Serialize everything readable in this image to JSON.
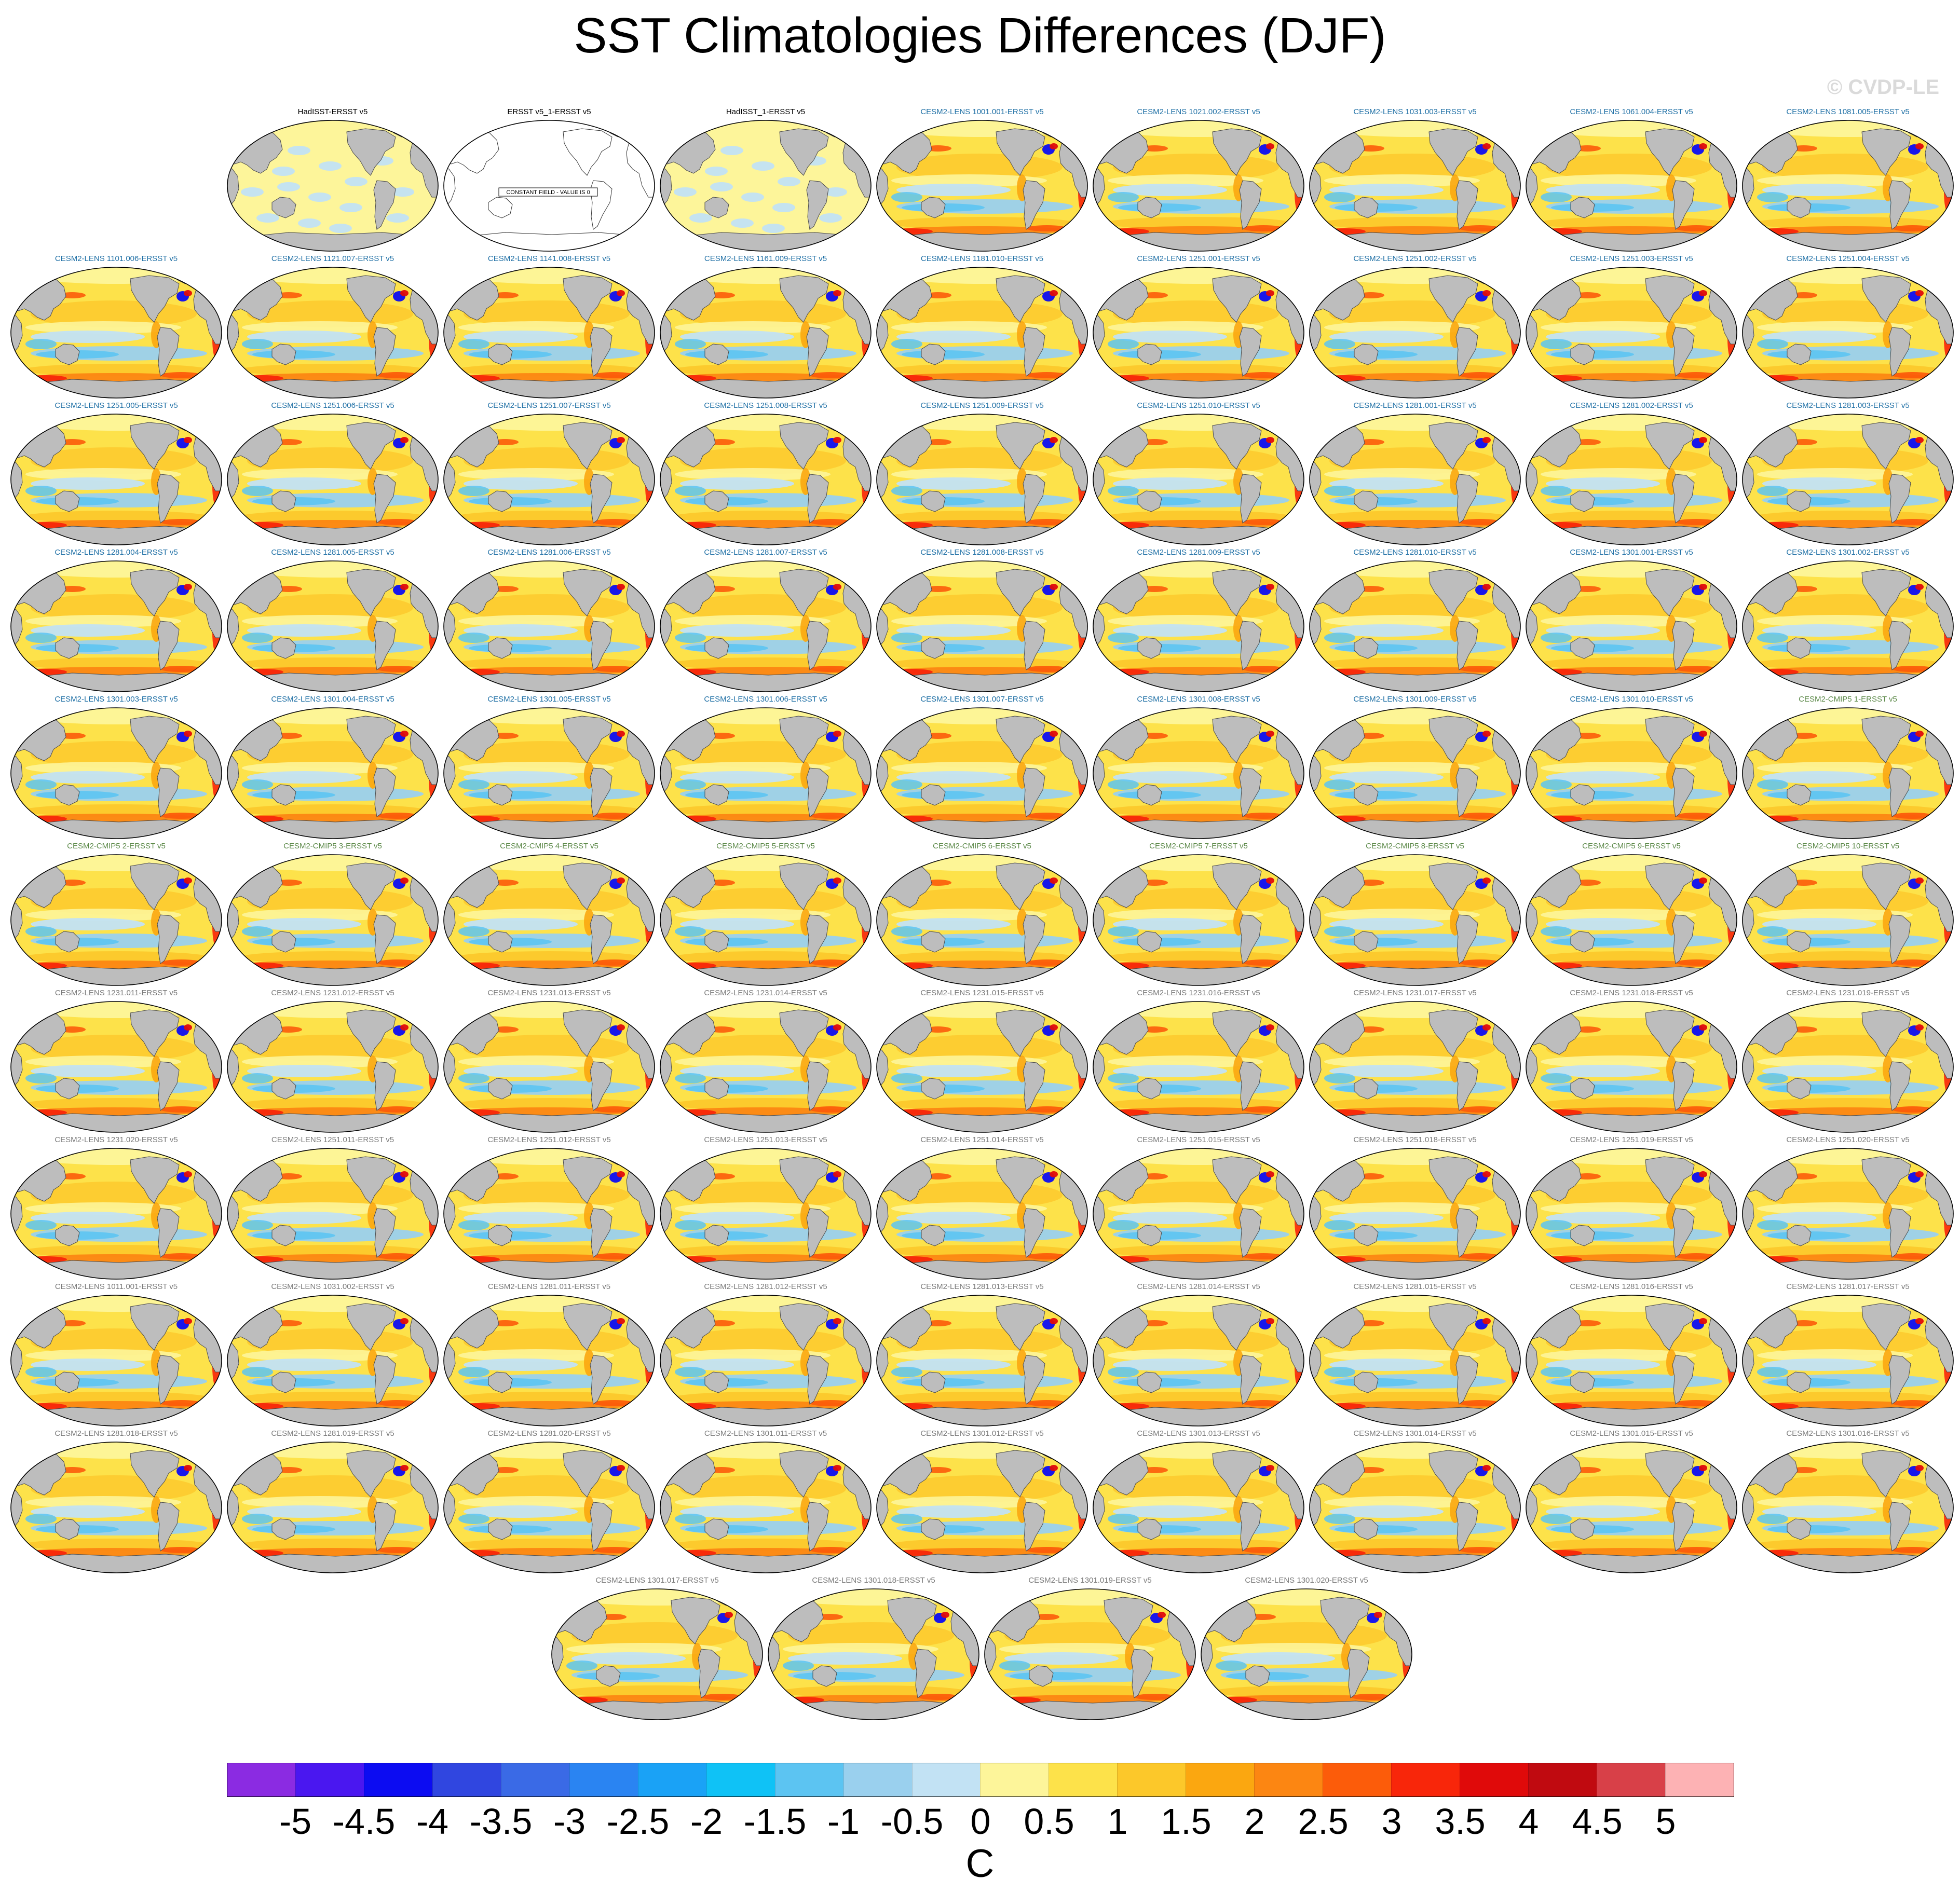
{
  "figure": {
    "title": "SST Climatologies Differences (DJF)",
    "watermark": "© CVDP-LE"
  },
  "chart_data": {
    "type": "map-panels",
    "panels": [
      {
        "label": "HadISST-ERSST v5",
        "group": "obs",
        "pattern": "obs"
      },
      {
        "label": "ERSST v5_1-ERSST v5",
        "group": "obs",
        "pattern": "constant",
        "note": "CONSTANT FIELD - VALUE IS 0"
      },
      {
        "label": "HadISST_1-ERSST v5",
        "group": "obs",
        "pattern": "obs"
      },
      {
        "label": "CESM2-LENS 1001.001-ERSST v5",
        "group": "lens-blue",
        "pattern": "model"
      },
      {
        "label": "CESM2-LENS 1021.002-ERSST v5",
        "group": "lens-blue",
        "pattern": "model"
      },
      {
        "label": "CESM2-LENS 1031.003-ERSST v5",
        "group": "lens-blue",
        "pattern": "model"
      },
      {
        "label": "CESM2-LENS 1061.004-ERSST v5",
        "group": "lens-blue",
        "pattern": "model"
      },
      {
        "label": "CESM2-LENS 1081.005-ERSST v5",
        "group": "lens-blue",
        "pattern": "model"
      },
      {
        "label": "CESM2-LENS 1101.006-ERSST v5",
        "group": "lens-blue",
        "pattern": "model"
      },
      {
        "label": "CESM2-LENS 1121.007-ERSST v5",
        "group": "lens-blue",
        "pattern": "model"
      },
      {
        "label": "CESM2-LENS 1141.008-ERSST v5",
        "group": "lens-blue",
        "pattern": "model"
      },
      {
        "label": "CESM2-LENS 1161.009-ERSST v5",
        "group": "lens-blue",
        "pattern": "model"
      },
      {
        "label": "CESM2-LENS 1181.010-ERSST v5",
        "group": "lens-blue",
        "pattern": "model"
      },
      {
        "label": "CESM2-LENS 1251.001-ERSST v5",
        "group": "lens-blue",
        "pattern": "model"
      },
      {
        "label": "CESM2-LENS 1251.002-ERSST v5",
        "group": "lens-blue",
        "pattern": "model"
      },
      {
        "label": "CESM2-LENS 1251.003-ERSST v5",
        "group": "lens-blue",
        "pattern": "model"
      },
      {
        "label": "CESM2-LENS 1251.004-ERSST v5",
        "group": "lens-blue",
        "pattern": "model"
      },
      {
        "label": "CESM2-LENS 1251.005-ERSST v5",
        "group": "lens-blue",
        "pattern": "model"
      },
      {
        "label": "CESM2-LENS 1251.006-ERSST v5",
        "group": "lens-blue",
        "pattern": "model"
      },
      {
        "label": "CESM2-LENS 1251.007-ERSST v5",
        "group": "lens-blue",
        "pattern": "model"
      },
      {
        "label": "CESM2-LENS 1251.008-ERSST v5",
        "group": "lens-blue",
        "pattern": "model"
      },
      {
        "label": "CESM2-LENS 1251.009-ERSST v5",
        "group": "lens-blue",
        "pattern": "model"
      },
      {
        "label": "CESM2-LENS 1251.010-ERSST v5",
        "group": "lens-blue",
        "pattern": "model"
      },
      {
        "label": "CESM2-LENS 1281.001-ERSST v5",
        "group": "lens-blue",
        "pattern": "model"
      },
      {
        "label": "CESM2-LENS 1281.002-ERSST v5",
        "group": "lens-blue",
        "pattern": "model"
      },
      {
        "label": "CESM2-LENS 1281.003-ERSST v5",
        "group": "lens-blue",
        "pattern": "model"
      },
      {
        "label": "CESM2-LENS 1281.004-ERSST v5",
        "group": "lens-blue",
        "pattern": "model"
      },
      {
        "label": "CESM2-LENS 1281.005-ERSST v5",
        "group": "lens-blue",
        "pattern": "model"
      },
      {
        "label": "CESM2-LENS 1281.006-ERSST v5",
        "group": "lens-blue",
        "pattern": "model"
      },
      {
        "label": "CESM2-LENS 1281.007-ERSST v5",
        "group": "lens-blue",
        "pattern": "model"
      },
      {
        "label": "CESM2-LENS 1281.008-ERSST v5",
        "group": "lens-blue",
        "pattern": "model"
      },
      {
        "label": "CESM2-LENS 1281.009-ERSST v5",
        "group": "lens-blue",
        "pattern": "model"
      },
      {
        "label": "CESM2-LENS 1281.010-ERSST v5",
        "group": "lens-blue",
        "pattern": "model"
      },
      {
        "label": "CESM2-LENS 1301.001-ERSST v5",
        "group": "lens-blue",
        "pattern": "model"
      },
      {
        "label": "CESM2-LENS 1301.002-ERSST v5",
        "group": "lens-blue",
        "pattern": "model"
      },
      {
        "label": "CESM2-LENS 1301.003-ERSST v5",
        "group": "lens-blue",
        "pattern": "model"
      },
      {
        "label": "CESM2-LENS 1301.004-ERSST v5",
        "group": "lens-blue",
        "pattern": "model"
      },
      {
        "label": "CESM2-LENS 1301.005-ERSST v5",
        "group": "lens-blue",
        "pattern": "model"
      },
      {
        "label": "CESM2-LENS 1301.006-ERSST v5",
        "group": "lens-blue",
        "pattern": "model"
      },
      {
        "label": "CESM2-LENS 1301.007-ERSST v5",
        "group": "lens-blue",
        "pattern": "model"
      },
      {
        "label": "CESM2-LENS 1301.008-ERSST v5",
        "group": "lens-blue",
        "pattern": "model"
      },
      {
        "label": "CESM2-LENS 1301.009-ERSST v5",
        "group": "lens-blue",
        "pattern": "model"
      },
      {
        "label": "CESM2-LENS 1301.010-ERSST v5",
        "group": "lens-blue",
        "pattern": "model"
      },
      {
        "label": "CESM2-CMIP5 1-ERSST v5",
        "group": "cmip5",
        "pattern": "model"
      },
      {
        "label": "CESM2-CMIP5 2-ERSST v5",
        "group": "cmip5",
        "pattern": "model"
      },
      {
        "label": "CESM2-CMIP5 3-ERSST v5",
        "group": "cmip5",
        "pattern": "model"
      },
      {
        "label": "CESM2-CMIP5 4-ERSST v5",
        "group": "cmip5",
        "pattern": "model"
      },
      {
        "label": "CESM2-CMIP5 5-ERSST v5",
        "group": "cmip5",
        "pattern": "model"
      },
      {
        "label": "CESM2-CMIP5 6-ERSST v5",
        "group": "cmip5",
        "pattern": "model"
      },
      {
        "label": "CESM2-CMIP5 7-ERSST v5",
        "group": "cmip5",
        "pattern": "model"
      },
      {
        "label": "CESM2-CMIP5 8-ERSST v5",
        "group": "cmip5",
        "pattern": "model"
      },
      {
        "label": "CESM2-CMIP5 9-ERSST v5",
        "group": "cmip5",
        "pattern": "model"
      },
      {
        "label": "CESM2-CMIP5 10-ERSST v5",
        "group": "cmip5",
        "pattern": "model"
      },
      {
        "label": "CESM2-LENS 1231.011-ERSST v5",
        "group": "lens-gray",
        "pattern": "model"
      },
      {
        "label": "CESM2-LENS 1231.012-ERSST v5",
        "group": "lens-gray",
        "pattern": "model"
      },
      {
        "label": "CESM2-LENS 1231.013-ERSST v5",
        "group": "lens-gray",
        "pattern": "model"
      },
      {
        "label": "CESM2-LENS 1231.014-ERSST v5",
        "group": "lens-gray",
        "pattern": "model"
      },
      {
        "label": "CESM2-LENS 1231.015-ERSST v5",
        "group": "lens-gray",
        "pattern": "model"
      },
      {
        "label": "CESM2-LENS 1231.016-ERSST v5",
        "group": "lens-gray",
        "pattern": "model"
      },
      {
        "label": "CESM2-LENS 1231.017-ERSST v5",
        "group": "lens-gray",
        "pattern": "model"
      },
      {
        "label": "CESM2-LENS 1231.018-ERSST v5",
        "group": "lens-gray",
        "pattern": "model"
      },
      {
        "label": "CESM2-LENS 1231.019-ERSST v5",
        "group": "lens-gray",
        "pattern": "model"
      },
      {
        "label": "CESM2-LENS 1231.020-ERSST v5",
        "group": "lens-gray",
        "pattern": "model"
      },
      {
        "label": "CESM2-LENS 1251.011-ERSST v5",
        "group": "lens-gray",
        "pattern": "model"
      },
      {
        "label": "CESM2-LENS 1251.012-ERSST v5",
        "group": "lens-gray",
        "pattern": "model"
      },
      {
        "label": "CESM2-LENS 1251.013-ERSST v5",
        "group": "lens-gray",
        "pattern": "model"
      },
      {
        "label": "CESM2-LENS 1251.014-ERSST v5",
        "group": "lens-gray",
        "pattern": "model"
      },
      {
        "label": "CESM2-LENS 1251.015-ERSST v5",
        "group": "lens-gray",
        "pattern": "model"
      },
      {
        "label": "CESM2-LENS 1251.018-ERSST v5",
        "group": "lens-gray",
        "pattern": "model"
      },
      {
        "label": "CESM2-LENS 1251.019-ERSST v5",
        "group": "lens-gray",
        "pattern": "model"
      },
      {
        "label": "CESM2-LENS 1251.020-ERSST v5",
        "group": "lens-gray",
        "pattern": "model"
      },
      {
        "label": "CESM2-LENS 1011.001-ERSST v5",
        "group": "lens-gray",
        "pattern": "model"
      },
      {
        "label": "CESM2-LENS 1031.002-ERSST v5",
        "group": "lens-gray",
        "pattern": "model"
      },
      {
        "label": "CESM2-LENS 1281.011-ERSST v5",
        "group": "lens-gray",
        "pattern": "model"
      },
      {
        "label": "CESM2-LENS 1281.012-ERSST v5",
        "group": "lens-gray",
        "pattern": "model"
      },
      {
        "label": "CESM2-LENS 1281.013-ERSST v5",
        "group": "lens-gray",
        "pattern": "model"
      },
      {
        "label": "CESM2-LENS 1281.014-ERSST v5",
        "group": "lens-gray",
        "pattern": "model"
      },
      {
        "label": "CESM2-LENS 1281.015-ERSST v5",
        "group": "lens-gray",
        "pattern": "model"
      },
      {
        "label": "CESM2-LENS 1281.016-ERSST v5",
        "group": "lens-gray",
        "pattern": "model"
      },
      {
        "label": "CESM2-LENS 1281.017-ERSST v5",
        "group": "lens-gray",
        "pattern": "model"
      },
      {
        "label": "CESM2-LENS 1281.018-ERSST v5",
        "group": "lens-gray",
        "pattern": "model"
      },
      {
        "label": "CESM2-LENS 1281.019-ERSST v5",
        "group": "lens-gray",
        "pattern": "model"
      },
      {
        "label": "CESM2-LENS 1281.020-ERSST v5",
        "group": "lens-gray",
        "pattern": "model"
      },
      {
        "label": "CESM2-LENS 1301.011-ERSST v5",
        "group": "lens-gray",
        "pattern": "model"
      },
      {
        "label": "CESM2-LENS 1301.012-ERSST v5",
        "group": "lens-gray",
        "pattern": "model"
      },
      {
        "label": "CESM2-LENS 1301.013-ERSST v5",
        "group": "lens-gray",
        "pattern": "model"
      },
      {
        "label": "CESM2-LENS 1301.014-ERSST v5",
        "group": "lens-gray",
        "pattern": "model"
      },
      {
        "label": "CESM2-LENS 1301.015-ERSST v5",
        "group": "lens-gray",
        "pattern": "model"
      },
      {
        "label": "CESM2-LENS 1301.016-ERSST v5",
        "group": "lens-gray",
        "pattern": "model"
      },
      {
        "label": "CESM2-LENS 1301.017-ERSST v5",
        "group": "lens-gray",
        "pattern": "model"
      },
      {
        "label": "CESM2-LENS 1301.018-ERSST v5",
        "group": "lens-gray",
        "pattern": "model"
      },
      {
        "label": "CESM2-LENS 1301.019-ERSST v5",
        "group": "lens-gray",
        "pattern": "model"
      },
      {
        "label": "CESM2-LENS 1301.020-ERSST v5",
        "group": "lens-gray",
        "pattern": "model"
      }
    ],
    "colorbar": {
      "unit": "C",
      "levels": [
        -5,
        -4.5,
        -4,
        -3.5,
        -3,
        -2.5,
        -2,
        -1.5,
        -1,
        -0.5,
        0,
        0.5,
        1,
        1.5,
        2,
        2.5,
        3,
        3.5,
        4,
        4.5,
        5
      ],
      "tick_labels": [
        "-5",
        "-4.5",
        "-4",
        "-3.5",
        "-3",
        "-2.5",
        "-2",
        "-1.5",
        "-1",
        "-0.5",
        "0",
        "0.5",
        "1",
        "1.5",
        "2",
        "2.5",
        "3",
        "3.5",
        "4",
        "4.5",
        "5"
      ],
      "colors": [
        "#8b2be2",
        "#4a17f0",
        "#0c0cf2",
        "#3046e0",
        "#3a6ae6",
        "#2a84f2",
        "#1aa2f6",
        "#0fc2f6",
        "#5cc4f2",
        "#9ad0ee",
        "#c2e2f4",
        "#fdf59a",
        "#fde24a",
        "#fcc82a",
        "#fba710",
        "#fc8612",
        "#fc5c0a",
        "#f8260a",
        "#e00a0a",
        "#c00a10",
        "#d84048",
        "#fdb2b4"
      ]
    }
  },
  "colors": {
    "land": "#bdbdbd",
    "title_obs": "#000000",
    "title_lens_blue": "#1e6fa5",
    "title_cmip5": "#5d8a4a",
    "title_lens_gray": "#7a7a7a"
  }
}
